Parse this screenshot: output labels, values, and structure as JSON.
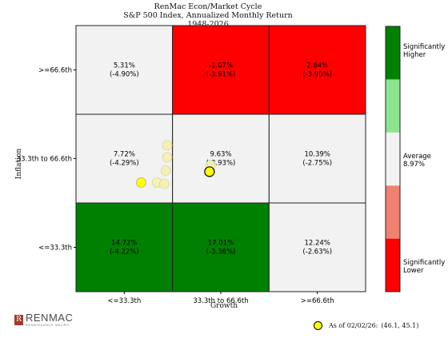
{
  "header": {
    "title_line1": "RenMac Econ/Market Cycle",
    "title_line2": "S&P 500 Index, Annualized Monthly Return",
    "title_line3": "1948-2026"
  },
  "axes": {
    "xlabel": "Growth",
    "ylabel": "Inflation",
    "x_ticks": [
      "<=33.3th",
      "33.3th to 66.6th",
      ">=66.6th"
    ],
    "y_ticks": [
      ">=66.6th",
      "33.3th to 66.6th",
      "<=33.3th"
    ]
  },
  "colorbar": {
    "labels": [
      {
        "text": "Significantly Higher",
        "lines": [
          "Significantly",
          "Higher"
        ]
      },
      {
        "text": "Average 8.97%",
        "lines": [
          "Average",
          "8.97%"
        ]
      },
      {
        "text": "Significantly Lower",
        "lines": [
          "Significantly",
          "Lower"
        ]
      }
    ],
    "colors": [
      "#ff0000",
      "#f08070",
      "#f2f2f2",
      "#8ee48e",
      "#008000"
    ]
  },
  "chart_data": {
    "type": "heatmap",
    "title": "RenMac Econ/Market Cycle — S&P 500 Index, Annualized Monthly Return — 1948-2026",
    "xlabel": "Growth",
    "ylabel": "Inflation",
    "x_categories": [
      "<=33.3th",
      "33.3th to 66.6th",
      ">=66.6th"
    ],
    "y_categories": [
      ">=66.6th",
      "33.3th to 66.6th",
      "<=33.3th"
    ],
    "cells": [
      [
        {
          "value": "5.31%",
          "secondary": "(-4.90%)",
          "color": "#f2f2f2"
        },
        {
          "value": "-1.07%",
          "secondary": "(-3.91%)",
          "color": "#ff0000"
        },
        {
          "value": "2.84%",
          "secondary": "(-3.90%)",
          "color": "#ff0000"
        }
      ],
      [
        {
          "value": "7.72%",
          "secondary": "(-4.29%)",
          "color": "#f2f2f2"
        },
        {
          "value": "9.63%",
          "secondary": "(-3.93%)",
          "color": "#f2f2f2"
        },
        {
          "value": "10.39%",
          "secondary": "(-2.75%)",
          "color": "#f2f2f2"
        }
      ],
      [
        {
          "value": "14.72%",
          "secondary": "(-4.22%)",
          "color": "#008000"
        },
        {
          "value": "17.01%",
          "secondary": "(-3.36%)",
          "color": "#008000"
        },
        {
          "value": "12.24%",
          "secondary": "(-2.63%)",
          "color": "#f2f2f2"
        }
      ]
    ],
    "x_range": [
      0,
      100
    ],
    "y_range": [
      0,
      100
    ],
    "points": [
      {
        "x": 46.1,
        "y": 45.1,
        "current": true
      },
      {
        "x": 28.0,
        "y": 41.0,
        "faded": true
      },
      {
        "x": 31.0,
        "y": 45.5,
        "faded": true
      },
      {
        "x": 30.5,
        "y": 40.5,
        "faded": true
      },
      {
        "x": 31.5,
        "y": 50.5,
        "faded": true
      },
      {
        "x": 31.5,
        "y": 55.0,
        "faded": true
      },
      {
        "x": 46.5,
        "y": 47.5,
        "faded": true
      },
      {
        "x": 22.5,
        "y": 41.0,
        "faded": false
      }
    ]
  },
  "legend": {
    "as_of_label": "As of 02/02/26:",
    "as_of_coords": "(46.1, 45.1)"
  },
  "logo": {
    "mark": "R",
    "name": "RENMAC",
    "sub": "RENAISSANCE MACRO"
  }
}
